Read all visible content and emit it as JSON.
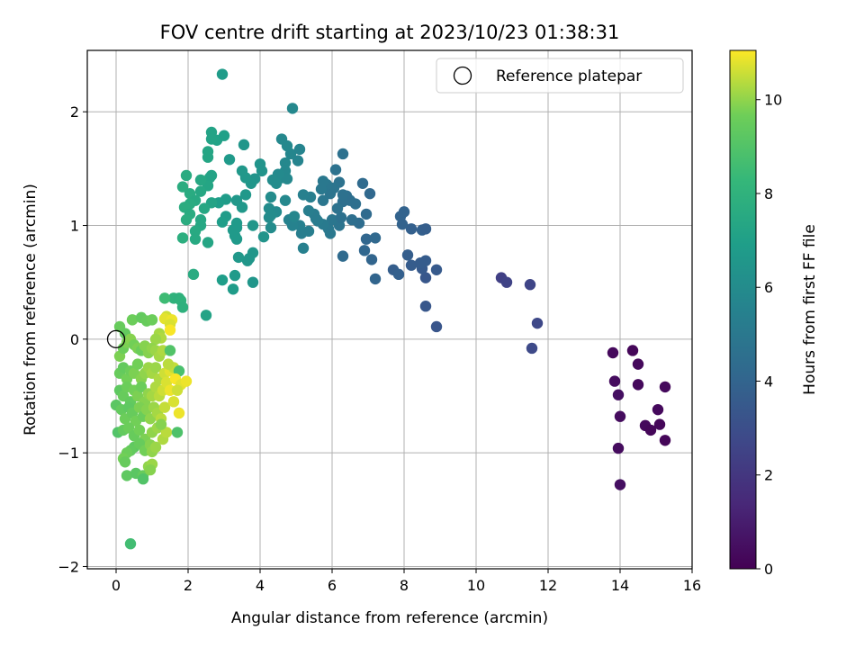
{
  "chart_data": {
    "type": "scatter",
    "title": "FOV centre drift starting at 2023/10/23 01:38:31",
    "xlabel": "Angular distance from reference (arcmin)",
    "ylabel": "Rotation from reference (arcmin)",
    "xlim": [
      -0.8,
      16
    ],
    "ylim": [
      -2.02,
      2.54
    ],
    "xticks": [
      0,
      2,
      4,
      6,
      8,
      10,
      12,
      14,
      16
    ],
    "yticks": [
      -2,
      -1,
      0,
      1,
      2
    ],
    "grid": true,
    "legend": {
      "position": "top-right",
      "entries": [
        "Reference platepar"
      ]
    },
    "reference_point": {
      "x": 0,
      "y": 0
    },
    "colorbar": {
      "label": "Hours from first FF file",
      "range": [
        0,
        11.05
      ],
      "ticks": [
        0,
        2,
        4,
        6,
        8,
        10
      ],
      "colormap": "viridis"
    },
    "points": [
      [
        13.8,
        -0.12,
        0.3
      ],
      [
        14.35,
        -0.1,
        0.2
      ],
      [
        14.5,
        -0.22,
        0.3
      ],
      [
        13.85,
        -0.37,
        0.4
      ],
      [
        13.95,
        -0.49,
        0.5
      ],
      [
        14.5,
        -0.4,
        0.3
      ],
      [
        14,
        -0.68,
        0.4
      ],
      [
        14.7,
        -0.76,
        0.3
      ],
      [
        14.85,
        -0.8,
        0.2
      ],
      [
        15.05,
        -0.62,
        0.3
      ],
      [
        15.1,
        -0.75,
        0.2
      ],
      [
        15.25,
        -0.42,
        0.3
      ],
      [
        15.25,
        -0.89,
        0.2
      ],
      [
        13.95,
        -0.96,
        0.4
      ],
      [
        14,
        -1.28,
        0.5
      ],
      [
        10.7,
        0.54,
        2.4
      ],
      [
        10.85,
        0.5,
        2.5
      ],
      [
        11.5,
        0.48,
        2.6
      ],
      [
        11.7,
        0.14,
        2.7
      ],
      [
        11.55,
        -0.08,
        2.8
      ],
      [
        8.9,
        0.11,
        3.3
      ],
      [
        8.6,
        0.29,
        3.4
      ],
      [
        8.9,
        0.61,
        3.5
      ],
      [
        8.6,
        0.54,
        3.4
      ],
      [
        8.5,
        0.62,
        3.5
      ],
      [
        8.6,
        0.69,
        3.6
      ],
      [
        8.2,
        0.65,
        3.6
      ],
      [
        8.1,
        0.74,
        3.7
      ],
      [
        7.7,
        0.61,
        3.7
      ],
      [
        7.85,
        0.57,
        3.8
      ],
      [
        8.45,
        0.67,
        3.6
      ],
      [
        7.2,
        0.53,
        4.0
      ],
      [
        7.1,
        0.7,
        4.0
      ],
      [
        6.9,
        0.78,
        4.1
      ],
      [
        6.95,
        0.88,
        4.1
      ],
      [
        7.2,
        0.89,
        4.2
      ],
      [
        6.3,
        0.73,
        4.3
      ],
      [
        7.9,
        1.08,
        3.9
      ],
      [
        8,
        1.12,
        3.9
      ],
      [
        8.2,
        0.97,
        3.8
      ],
      [
        8.5,
        0.96,
        3.8
      ],
      [
        8.6,
        0.97,
        3.7
      ],
      [
        7.95,
        1.01,
        3.9
      ],
      [
        7.05,
        1.28,
        4.2
      ],
      [
        6.85,
        1.37,
        4.3
      ],
      [
        6.95,
        1.1,
        4.3
      ],
      [
        6.75,
        1.02,
        4.4
      ],
      [
        6.55,
        1.05,
        4.5
      ],
      [
        6.65,
        1.19,
        4.5
      ],
      [
        5.9,
        0.97,
        5.0
      ],
      [
        5.95,
        0.93,
        5.0
      ],
      [
        6.2,
        1.0,
        4.8
      ],
      [
        6,
        1.05,
        4.9
      ],
      [
        5.75,
        1.01,
        5.1
      ],
      [
        5.55,
        1.06,
        5.2
      ],
      [
        5.35,
        0.95,
        5.3
      ],
      [
        5.15,
        0.93,
        5.3
      ],
      [
        5.2,
        0.8,
        5.4
      ],
      [
        5.1,
        1.0,
        5.4
      ],
      [
        4.9,
        1.0,
        5.5
      ],
      [
        4.8,
        1.05,
        5.5
      ],
      [
        6.3,
        1.63,
        4.6
      ],
      [
        6.1,
        1.49,
        4.7
      ],
      [
        6.2,
        1.38,
        4.7
      ],
      [
        6.05,
        1.33,
        4.8
      ],
      [
        5.95,
        1.28,
        4.8
      ],
      [
        5.85,
        1.36,
        4.9
      ],
      [
        5.75,
        1.22,
        4.9
      ],
      [
        5.7,
        1.32,
        5.0
      ],
      [
        5.75,
        1.39,
        5.0
      ],
      [
        6.4,
        1.26,
        4.5
      ],
      [
        6.3,
        1.21,
        4.5
      ],
      [
        6.5,
        1.22,
        4.5
      ],
      [
        6.25,
        1.07,
        4.6
      ],
      [
        6.15,
        1.15,
        4.7
      ],
      [
        6.3,
        1.27,
        4.6
      ],
      [
        5.5,
        1.1,
        5.2
      ],
      [
        5.6,
        1.04,
        5.2
      ],
      [
        5.4,
        1.25,
        5.3
      ],
      [
        5.35,
        1.13,
        5.3
      ],
      [
        5.2,
        1.27,
        5.4
      ],
      [
        4.9,
        2.03,
        5.8
      ],
      [
        4.85,
        1.63,
        5.7
      ],
      [
        5.05,
        1.57,
        5.6
      ],
      [
        5.1,
        1.67,
        5.6
      ],
      [
        4.6,
        1.76,
        5.8
      ],
      [
        4.75,
        1.7,
        5.8
      ],
      [
        4.7,
        1.55,
        5.8
      ],
      [
        4.7,
        1.48,
        5.8
      ],
      [
        4.6,
        1.42,
        5.9
      ],
      [
        4.75,
        1.41,
        5.8
      ],
      [
        4.5,
        1.45,
        5.9
      ],
      [
        4.45,
        1.37,
        6.0
      ],
      [
        4.35,
        1.4,
        6.0
      ],
      [
        4.3,
        1.25,
        6.0
      ],
      [
        4.25,
        1.15,
        6.0
      ],
      [
        4.45,
        1.12,
        5.9
      ],
      [
        4.7,
        1.22,
        5.8
      ],
      [
        4.95,
        1.08,
        5.7
      ],
      [
        4.3,
        1.09,
        6.0
      ],
      [
        4.3,
        0.98,
        6.0
      ],
      [
        4.25,
        1.07,
        6.0
      ],
      [
        2.95,
        2.33,
        6.8
      ],
      [
        4,
        1.54,
        6.4
      ],
      [
        4.05,
        1.48,
        6.4
      ],
      [
        3.85,
        1.41,
        6.4
      ],
      [
        3.55,
        1.71,
        6.5
      ],
      [
        3.75,
        1.37,
        6.5
      ],
      [
        3.5,
        1.48,
        6.6
      ],
      [
        3.6,
        1.27,
        6.6
      ],
      [
        3.15,
        1.58,
        6.7
      ],
      [
        3.6,
        1.42,
        6.6
      ],
      [
        3.35,
        1.22,
        6.6
      ],
      [
        3.5,
        1.16,
        6.6
      ],
      [
        3.8,
        1.0,
        6.5
      ],
      [
        3.35,
        0.98,
        6.7
      ],
      [
        3.3,
        0.91,
        6.7
      ],
      [
        3.35,
        0.88,
        6.7
      ],
      [
        3.35,
        1.02,
        6.7
      ],
      [
        3.25,
        0.96,
        6.7
      ],
      [
        3.05,
        1.08,
        6.8
      ],
      [
        3.05,
        1.23,
        6.8
      ],
      [
        2.95,
        1.03,
        6.9
      ],
      [
        2.85,
        1.2,
        6.9
      ],
      [
        4.1,
        0.9,
        6.4
      ],
      [
        3.8,
        0.76,
        6.5
      ],
      [
        3.7,
        0.71,
        6.5
      ],
      [
        3.65,
        0.69,
        6.5
      ],
      [
        3.4,
        0.72,
        6.6
      ],
      [
        3.3,
        0.56,
        6.7
      ],
      [
        3.25,
        0.44,
        6.8
      ],
      [
        3.8,
        0.5,
        6.5
      ],
      [
        2.95,
        0.52,
        6.9
      ],
      [
        2.5,
        0.21,
        7.2
      ],
      [
        2.65,
        1.82,
        7.2
      ],
      [
        2.8,
        1.75,
        7.1
      ],
      [
        3,
        1.79,
        7.0
      ],
      [
        2.65,
        1.76,
        7.2
      ],
      [
        2.55,
        1.6,
        7.3
      ],
      [
        2.55,
        1.65,
        7.3
      ],
      [
        2.6,
        1.42,
        7.3
      ],
      [
        2.65,
        1.44,
        7.2
      ],
      [
        2.55,
        1.35,
        7.3
      ],
      [
        2.35,
        1.4,
        7.4
      ],
      [
        2.35,
        1.3,
        7.4
      ],
      [
        2.65,
        1.2,
        7.2
      ],
      [
        2.45,
        1.15,
        7.4
      ],
      [
        2.35,
        1.0,
        7.4
      ],
      [
        2.35,
        1.05,
        7.4
      ],
      [
        2.2,
        0.95,
        7.5
      ],
      [
        2.55,
        0.85,
        7.3
      ],
      [
        2.2,
        0.88,
        7.5
      ],
      [
        1.95,
        1.44,
        7.6
      ],
      [
        2.05,
        1.28,
        7.6
      ],
      [
        2.2,
        1.22,
        7.5
      ],
      [
        2.05,
        1.19,
        7.6
      ],
      [
        1.85,
        1.34,
        7.7
      ],
      [
        1.9,
        1.16,
        7.7
      ],
      [
        2.05,
        1.1,
        7.6
      ],
      [
        1.95,
        1.05,
        7.7
      ],
      [
        1.85,
        0.89,
        7.8
      ],
      [
        2.15,
        0.57,
        7.6
      ],
      [
        1.6,
        0.36,
        8.0
      ],
      [
        1.75,
        0.36,
        7.9
      ],
      [
        1.8,
        0.34,
        8.0
      ],
      [
        1.85,
        0.28,
        7.9
      ],
      [
        0.1,
        0.11,
        9.5
      ],
      [
        0.25,
        0.05,
        9.4
      ],
      [
        0.45,
        0.17,
        9.6
      ],
      [
        0.7,
        0.19,
        9.4
      ],
      [
        0.85,
        0.16,
        9.5
      ],
      [
        1.0,
        0.17,
        9.6
      ],
      [
        1.35,
        0.36,
        8.5
      ],
      [
        1.4,
        0.2,
        10.6
      ],
      [
        1.35,
        0.18,
        10.8
      ],
      [
        1.55,
        0.17,
        10.9
      ],
      [
        1.5,
        0.13,
        10.7
      ],
      [
        1.5,
        0.08,
        11.0
      ],
      [
        1.2,
        0.05,
        10.2
      ],
      [
        1.25,
        0.01,
        10.3
      ],
      [
        1.1,
        0.0,
        10.1
      ],
      [
        0.1,
        -0.15,
        9.8
      ],
      [
        0.2,
        -0.08,
        9.6
      ],
      [
        0.3,
        -0.03,
        9.8
      ],
      [
        0.4,
        0.0,
        9.9
      ],
      [
        0.5,
        -0.05,
        9.7
      ],
      [
        0.6,
        -0.08,
        9.8
      ],
      [
        0.7,
        -0.1,
        9.6
      ],
      [
        0.8,
        -0.06,
        9.9
      ],
      [
        0.9,
        -0.12,
        9.9
      ],
      [
        1.0,
        -0.08,
        10.0
      ],
      [
        1.1,
        -0.1,
        10.1
      ],
      [
        1.2,
        -0.15,
        10.2
      ],
      [
        1.3,
        -0.1,
        10.3
      ],
      [
        1.5,
        -0.1,
        9.0
      ],
      [
        0.1,
        -0.3,
        9.5
      ],
      [
        0.2,
        -0.25,
        9.4
      ],
      [
        0.3,
        -0.35,
        9.7
      ],
      [
        0.4,
        -0.28,
        9.6
      ],
      [
        0.5,
        -0.3,
        9.8
      ],
      [
        0.6,
        -0.22,
        9.7
      ],
      [
        0.7,
        -0.35,
        9.9
      ],
      [
        0.8,
        -0.3,
        10.0
      ],
      [
        0.9,
        -0.25,
        10.1
      ],
      [
        1.0,
        -0.3,
        10.2
      ],
      [
        1.1,
        -0.25,
        10.1
      ],
      [
        1.2,
        -0.35,
        10.3
      ],
      [
        1.35,
        -0.3,
        10.6
      ],
      [
        1.5,
        -0.28,
        10.8
      ],
      [
        1.6,
        -0.25,
        10.5
      ],
      [
        1.75,
        -0.28,
        8.8
      ],
      [
        1.45,
        -0.22,
        10.4
      ],
      [
        0.1,
        -0.45,
        9.3
      ],
      [
        0.2,
        -0.5,
        9.5
      ],
      [
        0.3,
        -0.42,
        9.6
      ],
      [
        0.4,
        -0.55,
        9.4
      ],
      [
        0.5,
        -0.45,
        9.7
      ],
      [
        0.6,
        -0.5,
        9.8
      ],
      [
        0.7,
        -0.42,
        9.6
      ],
      [
        0.8,
        -0.55,
        9.9
      ],
      [
        0.9,
        -0.48,
        10.0
      ],
      [
        1.0,
        -0.5,
        10.2
      ],
      [
        1.1,
        -0.42,
        10.3
      ],
      [
        1.2,
        -0.5,
        10.4
      ],
      [
        1.3,
        -0.45,
        10.6
      ],
      [
        1.4,
        -0.38,
        10.7
      ],
      [
        1.5,
        -0.45,
        10.9
      ],
      [
        1.65,
        -0.35,
        11.0
      ],
      [
        1.8,
        -0.4,
        10.8
      ],
      [
        1.95,
        -0.37,
        10.9
      ],
      [
        1.7,
        -0.45,
        10.6
      ],
      [
        0.0,
        -0.58,
        9.2
      ],
      [
        0.15,
        -0.62,
        9.4
      ],
      [
        0.25,
        -0.7,
        9.6
      ],
      [
        0.35,
        -0.6,
        9.3
      ],
      [
        0.45,
        -0.65,
        9.5
      ],
      [
        0.55,
        -0.72,
        9.7
      ],
      [
        0.65,
        -0.6,
        9.8
      ],
      [
        0.75,
        -0.68,
        9.6
      ],
      [
        0.85,
        -0.62,
        9.9
      ],
      [
        0.95,
        -0.7,
        10.0
      ],
      [
        1.05,
        -0.6,
        10.1
      ],
      [
        1.15,
        -0.65,
        10.2
      ],
      [
        1.25,
        -0.7,
        10.4
      ],
      [
        1.35,
        -0.6,
        10.5
      ],
      [
        1.75,
        -0.65,
        10.9
      ],
      [
        1.6,
        -0.55,
        10.7
      ],
      [
        0.05,
        -0.82,
        9.0
      ],
      [
        0.2,
        -0.8,
        9.4
      ],
      [
        0.35,
        -0.78,
        9.6
      ],
      [
        0.5,
        -0.85,
        9.5
      ],
      [
        0.65,
        -0.8,
        9.7
      ],
      [
        0.8,
        -0.88,
        9.8
      ],
      [
        1.0,
        -0.82,
        10.0
      ],
      [
        1.15,
        -0.78,
        10.1
      ],
      [
        1.3,
        -0.88,
        10.3
      ],
      [
        1.4,
        -0.82,
        10.4
      ],
      [
        1.25,
        -0.75,
        9.9
      ],
      [
        1.7,
        -0.82,
        8.9
      ],
      [
        0.5,
        -0.95,
        9.3
      ],
      [
        0.65,
        -0.92,
        9.5
      ],
      [
        0.8,
        -0.98,
        9.7
      ],
      [
        0.95,
        -0.93,
        9.9
      ],
      [
        1.0,
        -0.99,
        10.0
      ],
      [
        1.1,
        -0.95,
        10.1
      ],
      [
        0.4,
        -0.98,
        9.4
      ],
      [
        0.3,
        -1.0,
        9.6
      ],
      [
        0.2,
        -1.05,
        9.7
      ],
      [
        0.25,
        -1.08,
        9.5
      ],
      [
        0.3,
        -1.2,
        9.3
      ],
      [
        0.55,
        -1.18,
        9.2
      ],
      [
        0.75,
        -1.2,
        9.5
      ],
      [
        0.75,
        -1.23,
        9.0
      ],
      [
        0.9,
        -1.12,
        10.0
      ],
      [
        1.0,
        -1.1,
        10.1
      ],
      [
        0.95,
        -1.15,
        9.9
      ],
      [
        0.4,
        -1.8,
        8.6
      ]
    ]
  }
}
